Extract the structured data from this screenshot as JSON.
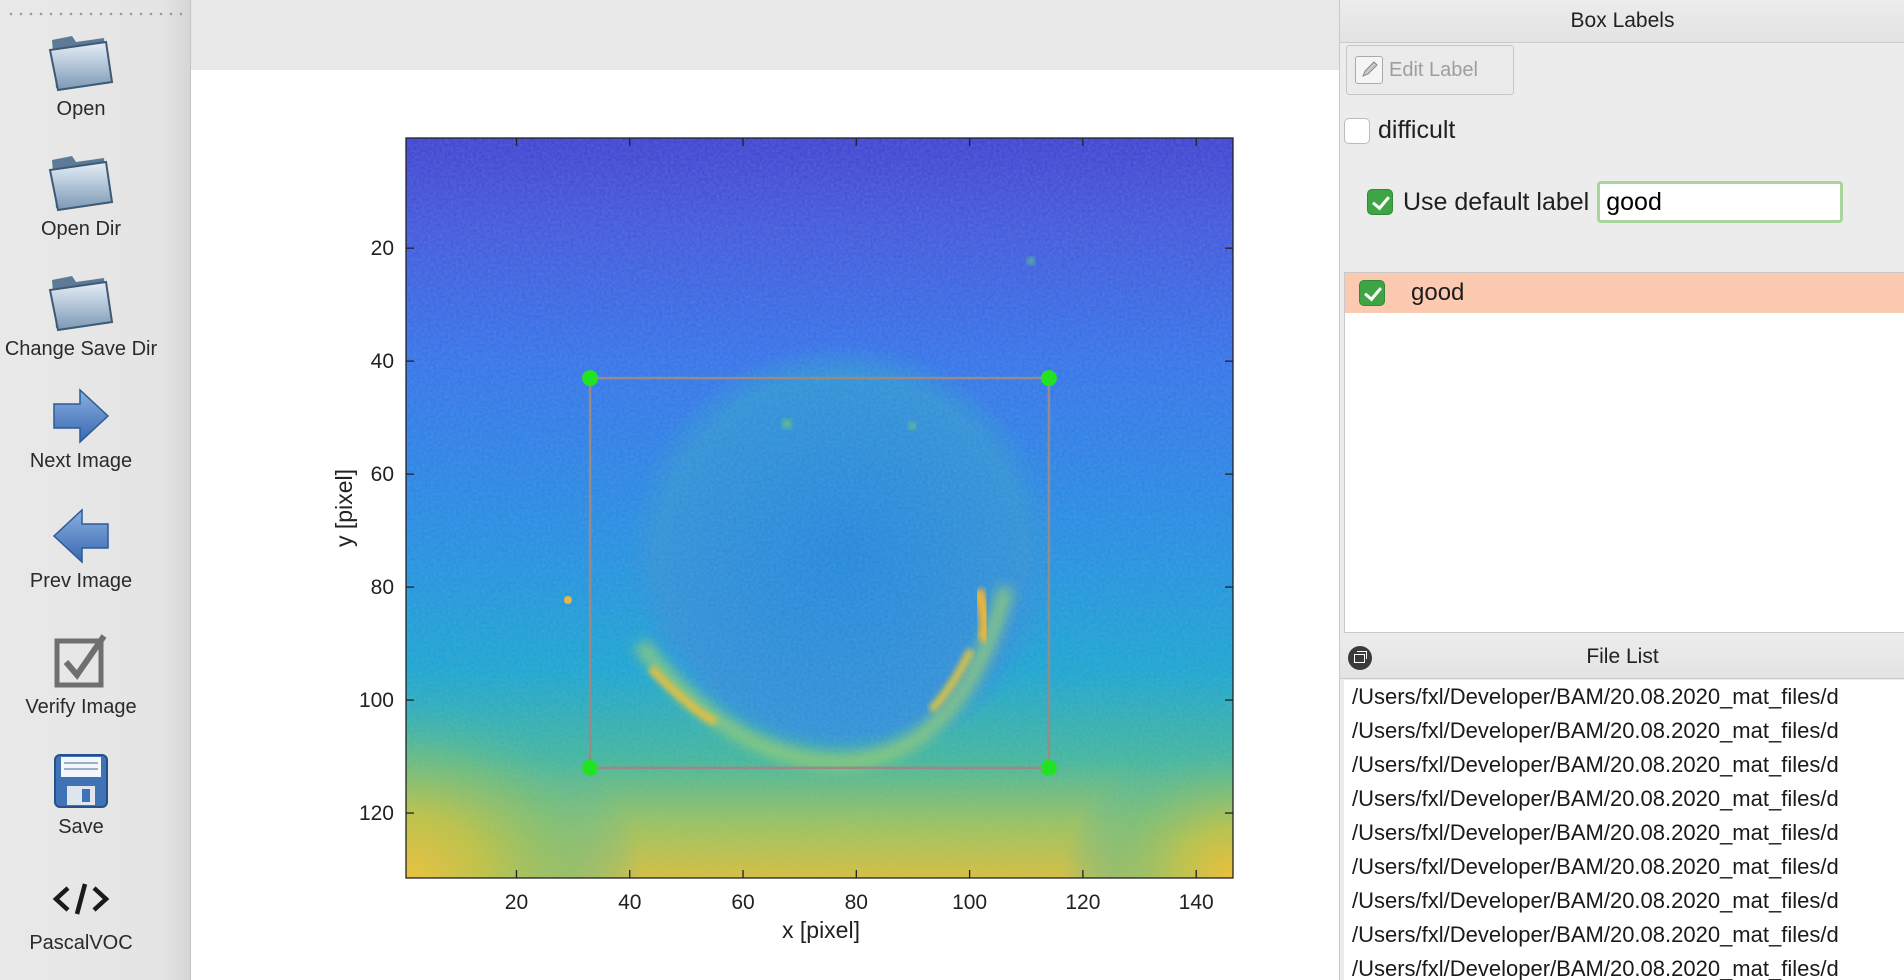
{
  "toolbar": {
    "items": [
      {
        "label": "Open",
        "icon": "folder-icon"
      },
      {
        "label": "Open Dir",
        "icon": "folder-icon"
      },
      {
        "label": "Change Save Dir",
        "icon": "folder-icon"
      },
      {
        "label": "Next Image",
        "icon": "arrow-right-icon"
      },
      {
        "label": "Prev Image",
        "icon": "arrow-left-icon"
      },
      {
        "label": "Verify Image",
        "icon": "checkbox-icon"
      },
      {
        "label": "Save",
        "icon": "floppy-icon"
      },
      {
        "label": "PascalVOC",
        "icon": "code-icon"
      }
    ]
  },
  "plot": {
    "x_axis_label": "x [pixel]",
    "y_axis_label": "y [pixel]",
    "x_ticks": [
      20,
      40,
      60,
      80,
      100,
      120,
      140
    ],
    "y_ticks": [
      20,
      40,
      60,
      80,
      100,
      120
    ],
    "x_range": [
      0.5,
      146.5
    ],
    "y_range": [
      0.5,
      131.5
    ],
    "bbox_data": {
      "x_min": 33,
      "x_max": 114,
      "y_min": 43,
      "y_max": 112
    },
    "colormap": "parula",
    "box_color": "#9a8a86",
    "handle_color": "#22e322"
  },
  "box_labels": {
    "title": "Box Labels",
    "edit_label_button": "Edit Label",
    "difficult_label": "difficult",
    "difficult_checked": false,
    "use_default_label": "Use default label",
    "use_default_checked": true,
    "default_label_value": "good",
    "labels": [
      {
        "text": "good",
        "checked": true,
        "color": "#fccab0"
      }
    ]
  },
  "file_list": {
    "title": "File List",
    "files": [
      "/Users/fxl/Developer/BAM/20.08.2020_mat_files/d",
      "/Users/fxl/Developer/BAM/20.08.2020_mat_files/d",
      "/Users/fxl/Developer/BAM/20.08.2020_mat_files/d",
      "/Users/fxl/Developer/BAM/20.08.2020_mat_files/d",
      "/Users/fxl/Developer/BAM/20.08.2020_mat_files/d",
      "/Users/fxl/Developer/BAM/20.08.2020_mat_files/d",
      "/Users/fxl/Developer/BAM/20.08.2020_mat_files/d",
      "/Users/fxl/Developer/BAM/20.08.2020_mat_files/d",
      "/Users/fxl/Developer/BAM/20.08.2020_mat_files/d"
    ]
  }
}
